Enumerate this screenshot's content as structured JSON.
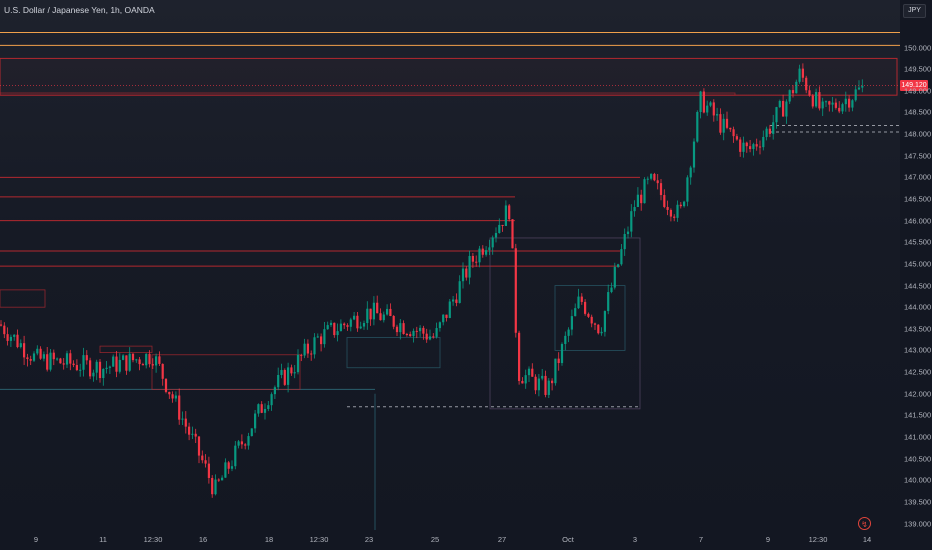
{
  "header": {
    "symbol_title": "U.S. Dollar / Japanese Yen, 1h, OANDA"
  },
  "price_axis": {
    "currency": "JPY",
    "last_price_label": "149.120"
  },
  "icons": {
    "snap": "lightning-icon"
  },
  "colors": {
    "background": "#131722",
    "up_candle": "#089981",
    "down_candle": "#f23645",
    "zone_red": "#b2282f",
    "level_orange": "#f0a04b",
    "box_blue": "#2a5f6e",
    "box_purple": "#5a4a6a"
  },
  "chart_data": {
    "type": "candlestick",
    "title": "U.S. Dollar / Japanese Yen, 1h, OANDA",
    "xlabel": "",
    "ylabel": "",
    "ylim": [
      138.85,
      151.1
    ],
    "grid": false,
    "y_ticks": [
      "150.000",
      "149.500",
      "149.000",
      "148.500",
      "148.000",
      "147.500",
      "147.000",
      "146.500",
      "146.000",
      "145.500",
      "145.000",
      "144.500",
      "144.000",
      "143.500",
      "143.000",
      "142.500",
      "142.000",
      "141.500",
      "141.000",
      "140.500",
      "140.000",
      "139.500",
      "139.000"
    ],
    "x_ticks": [
      "9",
      "11",
      "12:30",
      "16",
      "18",
      "12:30",
      "23",
      "25",
      "27",
      "Oct",
      "3",
      "7",
      "9",
      "12:30",
      "14"
    ],
    "last_price": 149.12,
    "key_points": [
      {
        "x": "start",
        "price": 143.6
      },
      {
        "x": "9",
        "price": 142.8
      },
      {
        "x": "11",
        "price": 142.6
      },
      {
        "x": "12:30",
        "price": 142.9
      },
      {
        "x": "16",
        "price": 140.4
      },
      {
        "x": "",
        "price": 139.75
      },
      {
        "x": "18",
        "price": 142.0
      },
      {
        "x": "12:30",
        "price": 143.3
      },
      {
        "x": "23",
        "price": 143.9
      },
      {
        "x": "25",
        "price": 143.3
      },
      {
        "x": "",
        "price": 145.0
      },
      {
        "x": "27",
        "price": 146.3
      },
      {
        "x": "",
        "price": 142.5
      },
      {
        "x": "Oct",
        "price": 142.1
      },
      {
        "x": "",
        "price": 144.2
      },
      {
        "x": "",
        "price": 143.5
      },
      {
        "x": "3",
        "price": 146.4
      },
      {
        "x": "",
        "price": 146.9
      },
      {
        "x": "",
        "price": 146.1
      },
      {
        "x": "7",
        "price": 148.8
      },
      {
        "x": "",
        "price": 148.1
      },
      {
        "x": "",
        "price": 147.6
      },
      {
        "x": "9",
        "price": 148.1
      },
      {
        "x": "",
        "price": 148.9
      },
      {
        "x": "",
        "price": 149.4
      },
      {
        "x": "12:30",
        "price": 148.5
      },
      {
        "x": "",
        "price": 148.8
      },
      {
        "x": "14",
        "price": 149.12
      }
    ],
    "levels": [
      {
        "kind": "resistance-line",
        "price": 150.35,
        "color": "orange"
      },
      {
        "kind": "resistance-line",
        "price": 150.05,
        "color": "orange"
      },
      {
        "kind": "supply-zone",
        "price_high": 149.75,
        "price_low": 148.9,
        "color": "red"
      },
      {
        "kind": "level",
        "price": 147.0,
        "color": "red"
      },
      {
        "kind": "level",
        "price": 146.55,
        "color": "red"
      },
      {
        "kind": "level",
        "price": 146.0,
        "color": "red"
      },
      {
        "kind": "level",
        "price": 145.3,
        "color": "red"
      },
      {
        "kind": "level",
        "price": 144.95,
        "color": "red"
      },
      {
        "kind": "level",
        "price": 142.1,
        "color": "blue"
      },
      {
        "kind": "dashed-level",
        "price": 141.7,
        "color": "white"
      },
      {
        "kind": "dashed-level",
        "price": 148.2,
        "color": "white"
      },
      {
        "kind": "dashed-level",
        "price": 148.05,
        "color": "white"
      }
    ]
  }
}
